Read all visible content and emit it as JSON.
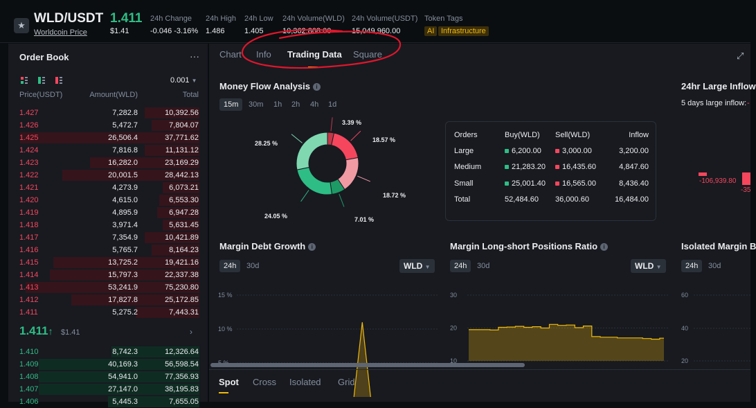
{
  "header": {
    "pair": "WLD/USDT",
    "pair_sub": "Worldcoin Price",
    "price": "1.411",
    "price_usd": "$1.41",
    "stats": [
      {
        "label": "24h Change",
        "value": "-0.046 -3.16%",
        "color": "#f6465d"
      },
      {
        "label": "24h High",
        "value": "1.486"
      },
      {
        "label": "24h Low",
        "value": "1.405"
      },
      {
        "label": "24h Volume(WLD)",
        "value": "10,362,808.00"
      },
      {
        "label": "24h Volume(USDT)",
        "value": "15,049,960.00"
      },
      {
        "label": "Token Tags",
        "value": ""
      }
    ],
    "tags": [
      "AI",
      "Infrastructure"
    ]
  },
  "orderbook": {
    "title": "Order Book",
    "menu_icon": "more-icon",
    "precision": "0.001",
    "columns": [
      "Price(USDT)",
      "Amount(WLD)",
      "Total"
    ],
    "asks": [
      {
        "price": "1.427",
        "amount": "7,282.8",
        "total": "10,392.56",
        "depth": 0.3
      },
      {
        "price": "1.426",
        "amount": "5,472.7",
        "total": "7,804.07",
        "depth": 0.26
      },
      {
        "price": "1.425",
        "amount": "26,506.4",
        "total": "37,771.62",
        "depth": 0.98
      },
      {
        "price": "1.424",
        "amount": "7,816.8",
        "total": "11,131.12",
        "depth": 0.3
      },
      {
        "price": "1.423",
        "amount": "16,282.0",
        "total": "23,169.29",
        "depth": 0.6
      },
      {
        "price": "1.422",
        "amount": "20,001.5",
        "total": "28,442.13",
        "depth": 0.75
      },
      {
        "price": "1.421",
        "amount": "4,273.9",
        "total": "6,073.21",
        "depth": 0.2
      },
      {
        "price": "1.420",
        "amount": "4,615.0",
        "total": "6,553.30",
        "depth": 0.22
      },
      {
        "price": "1.419",
        "amount": "4,895.9",
        "total": "6,947.28",
        "depth": 0.23
      },
      {
        "price": "1.418",
        "amount": "3,971.4",
        "total": "5,631.45",
        "depth": 0.2
      },
      {
        "price": "1.417",
        "amount": "7,354.9",
        "total": "10,421.89",
        "depth": 0.3
      },
      {
        "price": "1.416",
        "amount": "5,765.7",
        "total": "8,164.23",
        "depth": 0.26
      },
      {
        "price": "1.415",
        "amount": "13,725.2",
        "total": "19,421.16",
        "depth": 0.8
      },
      {
        "price": "1.414",
        "amount": "15,797.3",
        "total": "22,337.38",
        "depth": 0.82
      },
      {
        "price": "1.413",
        "amount": "53,241.9",
        "total": "75,230.80",
        "depth": 0.95
      },
      {
        "price": "1.412",
        "amount": "17,827.8",
        "total": "25,172.85",
        "depth": 0.7
      },
      {
        "price": "1.411",
        "amount": "5,275.2",
        "total": "7,443.31",
        "depth": 0.35
      }
    ],
    "mid_price": "1.411",
    "mid_arrow": "↑",
    "mid_usd": "$1.41",
    "mid_chevron": "›",
    "bids": [
      {
        "price": "1.410",
        "amount": "8,742.3",
        "total": "12,326.64",
        "depth": 0.48
      },
      {
        "price": "1.409",
        "amount": "40,169.3",
        "total": "56,598.54",
        "depth": 0.88
      },
      {
        "price": "1.408",
        "amount": "54,941.0",
        "total": "77,356.93",
        "depth": 0.88
      },
      {
        "price": "1.407",
        "amount": "27,147.0",
        "total": "38,195.83",
        "depth": 0.88
      },
      {
        "price": "1.406",
        "amount": "5,445.3",
        "total": "7,655.05",
        "depth": 0.5
      }
    ]
  },
  "tabs": [
    "Chart",
    "Info",
    "Trading Data",
    "Square"
  ],
  "active_tab": "Trading Data",
  "money_flow": {
    "title": "Money Flow Analysis",
    "timeframes": [
      "15m",
      "30m",
      "1h",
      "2h",
      "4h",
      "1d"
    ],
    "active_timeframe": "15m",
    "chart_data": {
      "type": "pie",
      "slices": [
        {
          "value": 3.39,
          "label": "3.39 %",
          "color": "#c23848"
        },
        {
          "value": 18.57,
          "label": "18.57 %",
          "color": "#f6465d"
        },
        {
          "value": 18.72,
          "label": "18.72 %",
          "color": "#f09aa4"
        },
        {
          "value": 7.01,
          "label": "7.01 %",
          "color": "#1e9a66"
        },
        {
          "value": 24.05,
          "label": "24.05 %",
          "color": "#2ebd85"
        },
        {
          "value": 28.25,
          "label": "28.25 %",
          "color": "#7fd8b0"
        }
      ]
    },
    "table": {
      "headers": [
        "Orders",
        "Buy(WLD)",
        "Sell(WLD)",
        "Inflow"
      ],
      "rows": [
        {
          "order": "Large",
          "buy": "6,200.00",
          "sell": "3,000.00",
          "inflow": "3,200.00"
        },
        {
          "order": "Medium",
          "buy": "21,283.20",
          "sell": "16,435.60",
          "inflow": "4,847.60"
        },
        {
          "order": "Small",
          "buy": "25,001.40",
          "sell": "16,565.00",
          "inflow": "8,436.40"
        },
        {
          "order": "Total",
          "buy": "52,484.60",
          "sell": "36,000.60",
          "inflow": "16,484.00"
        }
      ]
    }
  },
  "large_inflow": {
    "title": "24hr Large Inflow",
    "subtitle": "5 days large inflow:",
    "value": "-106,939.80",
    "value2": "-35"
  },
  "margin_debt": {
    "title": "Margin Debt Growth",
    "periods": [
      "24h",
      "30d"
    ],
    "active_period": "24h",
    "asset": "WLD",
    "chart_data": {
      "type": "line",
      "yticks": [
        "15 %",
        "10 %",
        "5 %"
      ],
      "ylim": [
        0,
        15
      ],
      "x": [
        0,
        1,
        2,
        3,
        4,
        5,
        6,
        7,
        8,
        9,
        10,
        11,
        12,
        13,
        14,
        15,
        16,
        17,
        18,
        19,
        20,
        21,
        22,
        23,
        24
      ],
      "values": [
        null,
        null,
        null,
        null,
        null,
        null,
        null,
        null,
        null,
        null,
        null,
        null,
        null,
        null,
        0,
        11,
        0,
        null,
        null,
        null,
        null,
        null,
        null,
        null,
        null
      ]
    }
  },
  "long_short": {
    "title": "Margin Long-short Positions Ratio",
    "periods": [
      "24h",
      "30d"
    ],
    "active_period": "24h",
    "asset": "WLD",
    "chart_data": {
      "type": "area",
      "yticks": [
        "30",
        "20",
        "10"
      ],
      "ylim": [
        10,
        30
      ],
      "values": [
        19.5,
        19.5,
        19.5,
        19.4,
        20.2,
        20.3,
        20.5,
        20.2,
        20.4,
        20.0,
        21.1,
        20.8,
        20.9,
        20.1,
        20.6,
        17.4,
        17.2,
        17.2,
        17.0,
        17.0,
        17.0,
        16.8,
        16.6,
        16.9
      ]
    }
  },
  "isolated_margin": {
    "title": "Isolated Margin B",
    "periods": [
      "24h",
      "30d"
    ],
    "active_period": "24h",
    "yticks": [
      "60",
      "40",
      "20"
    ]
  },
  "bottom_tabs": [
    "Spot",
    "Cross",
    "Isolated",
    "Grid"
  ],
  "active_bottom_tab": "Spot",
  "annotation_color": "#e0162b"
}
